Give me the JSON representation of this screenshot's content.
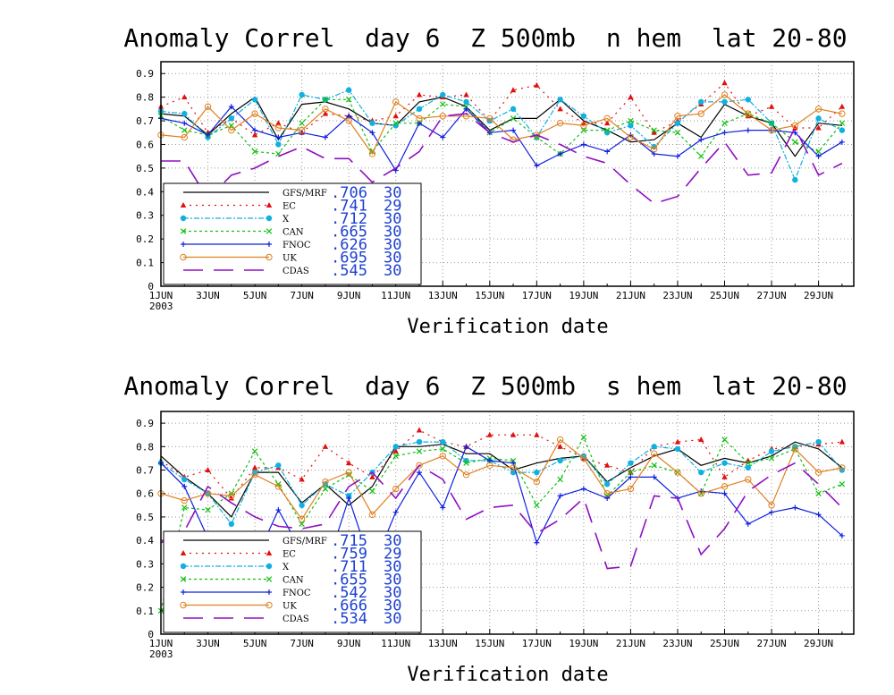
{
  "chart_data": [
    {
      "type": "line",
      "title": "Anomaly Correl  day 6  Z 500mb  n hem  lat 20-80",
      "xlabel": "Verification date",
      "ylabel": "",
      "ylim": [
        0,
        0.95
      ],
      "yticks": [
        "0",
        "0.1",
        "0.2",
        "0.3",
        "0.4",
        "0.5",
        "0.6",
        "0.7",
        "0.8",
        "0.9"
      ],
      "xticks": [
        "1JUN",
        "3JUN",
        "5JUN",
        "7JUN",
        "9JUN",
        "11JUN",
        "13JUN",
        "15JUN",
        "17JUN",
        "19JUN",
        "21JUN",
        "23JUN",
        "25JUN",
        "27JUN",
        "29JUN"
      ],
      "year_label": "2003",
      "x": [
        1,
        2,
        3,
        4,
        5,
        6,
        7,
        8,
        9,
        10,
        11,
        12,
        13,
        14,
        15,
        16,
        17,
        18,
        19,
        20,
        21,
        22,
        23,
        24,
        25,
        26,
        27,
        28,
        29,
        30
      ],
      "grid": true,
      "legend_position": "bottom-left",
      "series": [
        {
          "name": "GFS/MRF",
          "score": ".706",
          "count": "30",
          "color": "#000000",
          "values": [
            0.73,
            0.72,
            0.64,
            0.73,
            0.8,
            0.62,
            0.77,
            0.78,
            0.75,
            0.69,
            0.68,
            0.78,
            0.8,
            0.76,
            0.66,
            0.71,
            0.71,
            0.79,
            0.7,
            0.66,
            0.61,
            0.62,
            0.69,
            0.63,
            0.77,
            0.72,
            0.69,
            0.55,
            0.69,
            0.68
          ]
        },
        {
          "name": "EC",
          "score": ".741",
          "count": "29",
          "color": "#e01010",
          "values": [
            0.76,
            0.8,
            0.65,
            0.71,
            0.64,
            0.69,
            0.65,
            0.73,
            0.72,
            0.7,
            0.72,
            0.81,
            0.8,
            0.81,
            0.7,
            0.83,
            0.85,
            0.75,
            0.69,
            0.69,
            0.8,
            0.65,
            0.7,
            0.77,
            0.86,
            0.72,
            0.76,
            0.67,
            0.67,
            0.76
          ]
        },
        {
          "name": "X",
          "score": ".712",
          "count": "30",
          "color": "#10b0e0",
          "values": [
            0.74,
            0.73,
            0.63,
            0.71,
            0.79,
            0.6,
            0.81,
            0.79,
            0.83,
            0.69,
            0.68,
            0.75,
            0.81,
            0.78,
            0.7,
            0.75,
            0.63,
            0.79,
            0.72,
            0.65,
            0.68,
            0.59,
            0.69,
            0.78,
            0.78,
            0.79,
            0.69,
            0.45,
            0.71,
            0.66
          ]
        },
        {
          "name": "CAN",
          "score": ".665",
          "count": "30",
          "color": "#10c010",
          "values": [
            0.72,
            0.66,
            0.64,
            0.68,
            0.57,
            0.56,
            0.69,
            0.79,
            0.79,
            0.57,
            0.69,
            0.69,
            0.77,
            0.76,
            0.65,
            0.71,
            0.63,
            0.56,
            0.66,
            0.66,
            0.7,
            0.66,
            0.65,
            0.55,
            0.69,
            0.73,
            0.69,
            0.61,
            0.57,
            0.69
          ]
        },
        {
          "name": "FNOC",
          "score": ".626",
          "count": "30",
          "color": "#1020e0",
          "values": [
            0.71,
            0.69,
            0.64,
            0.76,
            0.66,
            0.63,
            0.65,
            0.63,
            0.72,
            0.65,
            0.49,
            0.69,
            0.63,
            0.75,
            0.65,
            0.66,
            0.51,
            0.56,
            0.6,
            0.57,
            0.64,
            0.56,
            0.55,
            0.62,
            0.65,
            0.66,
            0.66,
            0.65,
            0.55,
            0.61
          ]
        },
        {
          "name": "UK",
          "score": ".695",
          "count": "30",
          "color": "#e08020",
          "values": [
            0.64,
            0.63,
            0.76,
            0.66,
            0.73,
            0.67,
            0.66,
            0.75,
            0.7,
            0.56,
            0.78,
            0.71,
            0.72,
            0.72,
            0.71,
            0.62,
            0.64,
            0.69,
            0.68,
            0.71,
            0.63,
            0.58,
            0.72,
            0.73,
            0.81,
            0.73,
            0.66,
            0.68,
            0.75,
            0.73
          ]
        },
        {
          "name": "CDAS",
          "score": ".545",
          "count": "30",
          "color": "#9010c0",
          "values": [
            0.53,
            0.53,
            0.37,
            0.47,
            0.5,
            0.55,
            0.59,
            0.54,
            0.54,
            0.44,
            0.5,
            0.57,
            0.72,
            0.73,
            0.65,
            0.61,
            0.64,
            0.6,
            0.55,
            0.52,
            0.43,
            0.35,
            0.38,
            0.5,
            0.61,
            0.47,
            0.48,
            0.67,
            0.47,
            0.52
          ]
        }
      ]
    },
    {
      "type": "line",
      "title": "Anomaly Correl  day 6  Z 500mb  s hem  lat 20-80",
      "xlabel": "Verification date",
      "ylabel": "",
      "ylim": [
        0,
        0.95
      ],
      "yticks": [
        "0",
        "0.1",
        "0.2",
        "0.3",
        "0.4",
        "0.5",
        "0.6",
        "0.7",
        "0.8",
        "0.9"
      ],
      "xticks": [
        "1JUN",
        "3JUN",
        "5JUN",
        "7JUN",
        "9JUN",
        "11JUN",
        "13JUN",
        "15JUN",
        "17JUN",
        "19JUN",
        "21JUN",
        "23JUN",
        "25JUN",
        "27JUN",
        "29JUN"
      ],
      "year_label": "2003",
      "x": [
        1,
        2,
        3,
        4,
        5,
        6,
        7,
        8,
        9,
        10,
        11,
        12,
        13,
        14,
        15,
        16,
        17,
        18,
        19,
        20,
        21,
        22,
        23,
        24,
        25,
        26,
        27,
        28,
        29,
        30
      ],
      "grid": true,
      "legend_position": "bottom-left",
      "series": [
        {
          "name": "GFS/MRF",
          "score": ".715",
          "count": "30",
          "color": "#000000",
          "values": [
            0.76,
            0.67,
            0.6,
            0.5,
            0.69,
            0.69,
            0.56,
            0.64,
            0.55,
            0.63,
            0.8,
            0.8,
            0.81,
            0.77,
            0.77,
            0.7,
            0.73,
            0.75,
            0.76,
            0.65,
            0.71,
            0.76,
            0.79,
            0.72,
            0.75,
            0.73,
            0.76,
            0.82,
            0.79,
            0.71
          ]
        },
        {
          "name": "EC",
          "score": ".759",
          "count": "29",
          "color": "#e01010",
          "values": [
            0.74,
            0.67,
            0.7,
            0.58,
            0.71,
            0.71,
            0.66,
            0.8,
            0.73,
            0.67,
            0.78,
            0.87,
            0.82,
            0.8,
            0.85,
            0.85,
            0.85,
            0.8,
            0.75,
            0.72,
            0.69,
            0.8,
            0.82,
            0.83,
            0.67,
            0.74,
            0.79,
            0.8,
            0.81,
            0.82
          ]
        },
        {
          "name": "X",
          "score": ".711",
          "count": "30",
          "color": "#10b0e0",
          "values": [
            0.73,
            0.66,
            0.6,
            0.47,
            0.69,
            0.72,
            0.55,
            0.64,
            0.59,
            0.69,
            0.8,
            0.82,
            0.82,
            0.74,
            0.74,
            0.69,
            0.69,
            0.74,
            0.76,
            0.64,
            0.73,
            0.8,
            0.79,
            0.69,
            0.73,
            0.71,
            0.78,
            0.8,
            0.82,
            0.7
          ]
        },
        {
          "name": "CAN",
          "score": ".655",
          "count": "30",
          "color": "#10c010",
          "values": [
            0.1,
            0.54,
            0.53,
            0.6,
            0.78,
            0.64,
            0.47,
            0.62,
            0.68,
            0.61,
            0.76,
            0.78,
            0.79,
            0.73,
            0.75,
            0.74,
            0.55,
            0.66,
            0.84,
            0.59,
            0.69,
            0.72,
            0.69,
            0.6,
            0.83,
            0.73,
            0.75,
            0.79,
            0.6,
            0.64
          ]
        },
        {
          "name": "FNOC",
          "score": ".542",
          "count": "30",
          "color": "#1020e0",
          "values": [
            0.73,
            0.63,
            0.41,
            0.14,
            0.31,
            0.53,
            0.35,
            0.27,
            0.58,
            0.28,
            0.52,
            0.69,
            0.54,
            0.8,
            0.74,
            0.73,
            0.39,
            0.59,
            0.62,
            0.58,
            0.67,
            0.67,
            0.58,
            0.61,
            0.6,
            0.47,
            0.52,
            0.54,
            0.51,
            0.42
          ]
        },
        {
          "name": "UK",
          "score": ".666",
          "count": "30",
          "color": "#e08020",
          "values": [
            0.6,
            0.57,
            0.6,
            0.59,
            0.68,
            0.63,
            0.49,
            0.65,
            0.69,
            0.51,
            0.62,
            0.72,
            0.76,
            0.68,
            0.72,
            0.71,
            0.65,
            0.83,
            0.75,
            0.6,
            0.62,
            0.77,
            0.69,
            0.6,
            0.63,
            0.66,
            0.55,
            0.79,
            0.69,
            0.71
          ]
        },
        {
          "name": "CDAS",
          "score": ".534",
          "count": "30",
          "color": "#9010c0",
          "values": [
            0.39,
            0.44,
            0.63,
            0.56,
            0.5,
            0.46,
            0.45,
            0.47,
            0.63,
            0.69,
            0.58,
            0.72,
            0.66,
            0.49,
            0.54,
            0.55,
            0.43,
            0.49,
            0.58,
            0.28,
            0.29,
            0.59,
            0.58,
            0.34,
            0.45,
            0.61,
            0.68,
            0.73,
            0.64,
            0.54
          ]
        }
      ]
    }
  ]
}
